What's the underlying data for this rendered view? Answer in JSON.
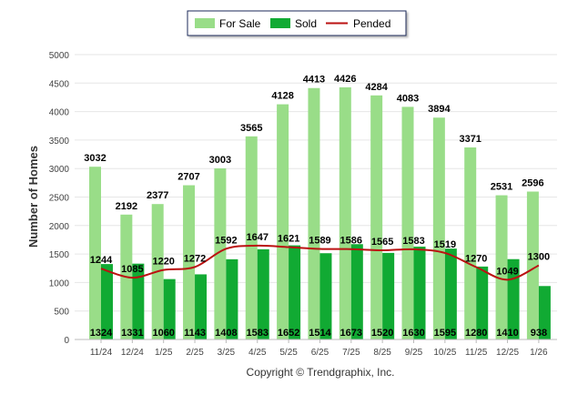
{
  "chart_data": {
    "type": "bar",
    "categories": [
      "11/24",
      "12/24",
      "1/25",
      "2/25",
      "3/25",
      "4/25",
      "5/25",
      "6/25",
      "7/25",
      "8/25",
      "9/25",
      "10/25",
      "11/25",
      "12/25",
      "1/26"
    ],
    "series": [
      {
        "name": "For Sale",
        "type": "bar",
        "color": "#99dd88",
        "values": [
          3032,
          2192,
          2377,
          2707,
          3003,
          3565,
          4128,
          4413,
          4426,
          4284,
          4083,
          3894,
          3371,
          2531,
          2596
        ]
      },
      {
        "name": "Sold",
        "type": "bar",
        "color": "#11aa33",
        "values": [
          1324,
          1331,
          1060,
          1143,
          1408,
          1583,
          1652,
          1514,
          1673,
          1520,
          1630,
          1595,
          1280,
          1410,
          938
        ]
      },
      {
        "name": "Pended",
        "type": "line",
        "color": "#bb1111",
        "values": [
          1244,
          1085,
          1220,
          1272,
          1592,
          1647,
          1621,
          1589,
          1586,
          1565,
          1583,
          1519,
          1270,
          1049,
          1300
        ]
      }
    ],
    "ylabel": "Number of Homes",
    "ylim": [
      0,
      5000
    ],
    "yticks": [
      0,
      500,
      1000,
      1500,
      2000,
      2500,
      3000,
      3500,
      4000,
      4500,
      5000
    ],
    "grid": true,
    "legend_position": "top-center"
  },
  "legend": {
    "for_sale": "For Sale",
    "sold": "Sold",
    "pended": "Pended"
  },
  "footer": {
    "copyright": "Copyright © Trendgraphix, Inc."
  }
}
